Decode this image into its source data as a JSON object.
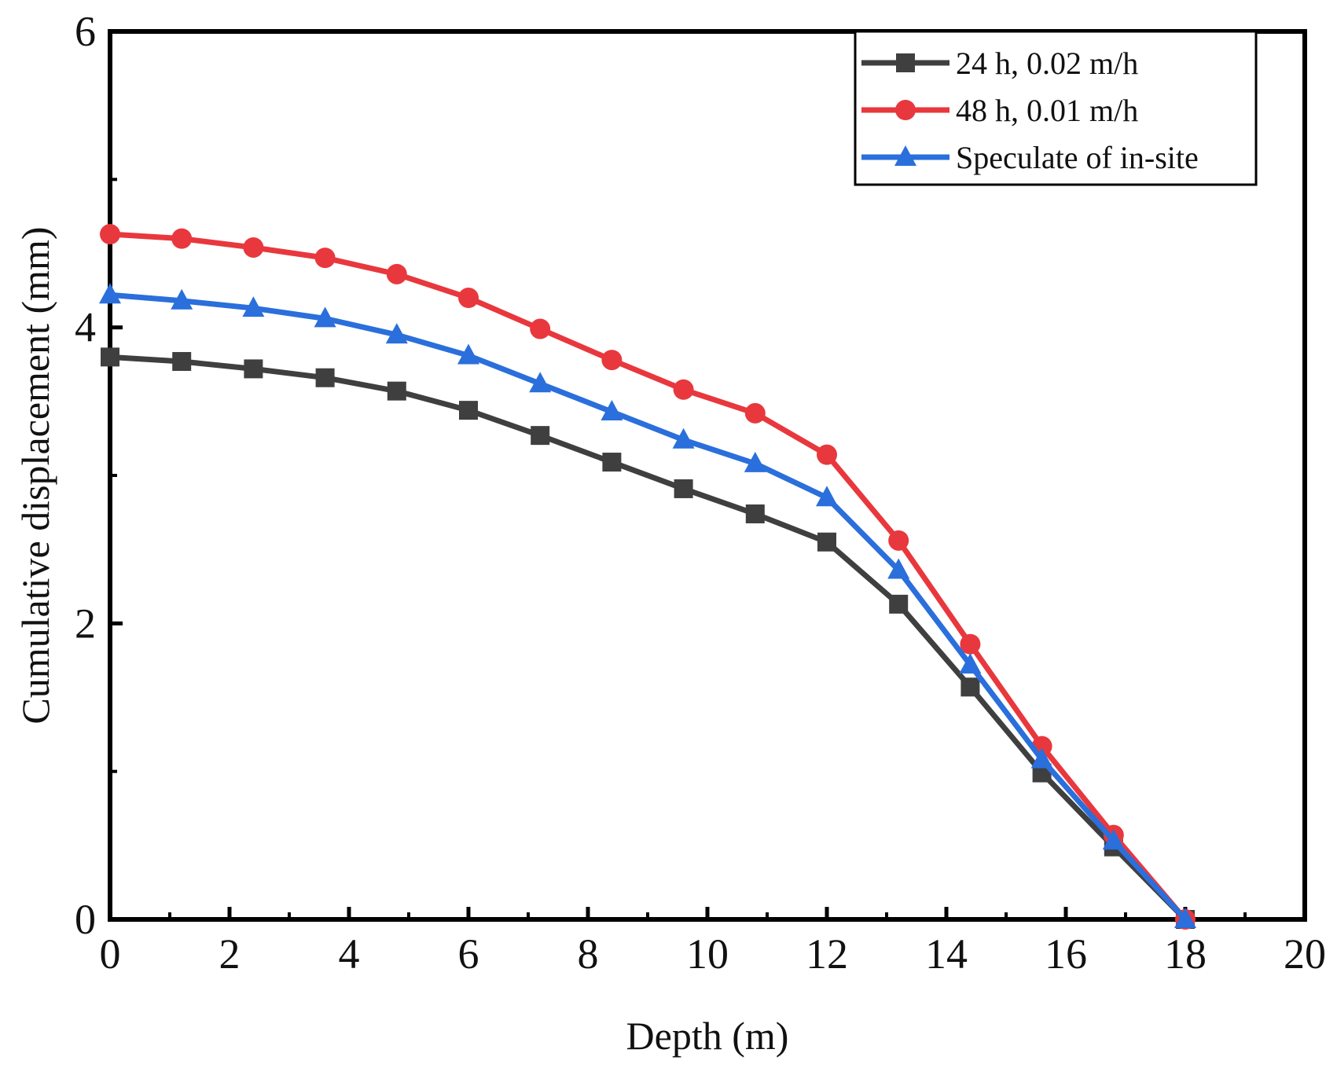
{
  "chart_data": {
    "type": "line",
    "title": "",
    "xlabel": "Depth (m)",
    "ylabel": "Cumulative displacement (mm)",
    "xlim": [
      0,
      20
    ],
    "ylim": [
      0,
      6
    ],
    "xticks": [
      0,
      2,
      4,
      6,
      8,
      10,
      12,
      14,
      16,
      18,
      20
    ],
    "yticks": [
      0,
      2,
      4,
      6
    ],
    "x_tick_labels": [
      "0",
      "2",
      "4",
      "6",
      "8",
      "10",
      "12",
      "14",
      "16",
      "18",
      "20"
    ],
    "y_tick_labels": [
      "0",
      "2",
      "4",
      "6"
    ],
    "grid": false,
    "legend_position": "top-right",
    "x": [
      0,
      1.2,
      2.4,
      3.6,
      4.8,
      6.0,
      7.2,
      8.4,
      9.6,
      10.8,
      12.0,
      13.2,
      14.4,
      15.6,
      16.8,
      18.0
    ],
    "series": [
      {
        "name": "24 h, 0.02 m/h",
        "color": "#3f3f3f",
        "marker": "square",
        "values": [
          3.8,
          3.77,
          3.72,
          3.66,
          3.57,
          3.44,
          3.27,
          3.09,
          2.91,
          2.74,
          2.55,
          2.13,
          1.57,
          0.99,
          0.49,
          0.0
        ]
      },
      {
        "name": "48 h, 0.01 m/h",
        "color": "#e8383d",
        "marker": "circle",
        "values": [
          4.63,
          4.6,
          4.54,
          4.47,
          4.36,
          4.2,
          3.99,
          3.78,
          3.58,
          3.42,
          3.14,
          2.56,
          1.86,
          1.17,
          0.57,
          0.0
        ]
      },
      {
        "name": "Speculate of in-site",
        "color": "#2a6fdb",
        "marker": "triangle",
        "values": [
          4.22,
          4.18,
          4.13,
          4.06,
          3.95,
          3.81,
          3.62,
          3.43,
          3.24,
          3.08,
          2.85,
          2.36,
          1.72,
          1.08,
          0.53,
          0.0
        ]
      }
    ]
  }
}
